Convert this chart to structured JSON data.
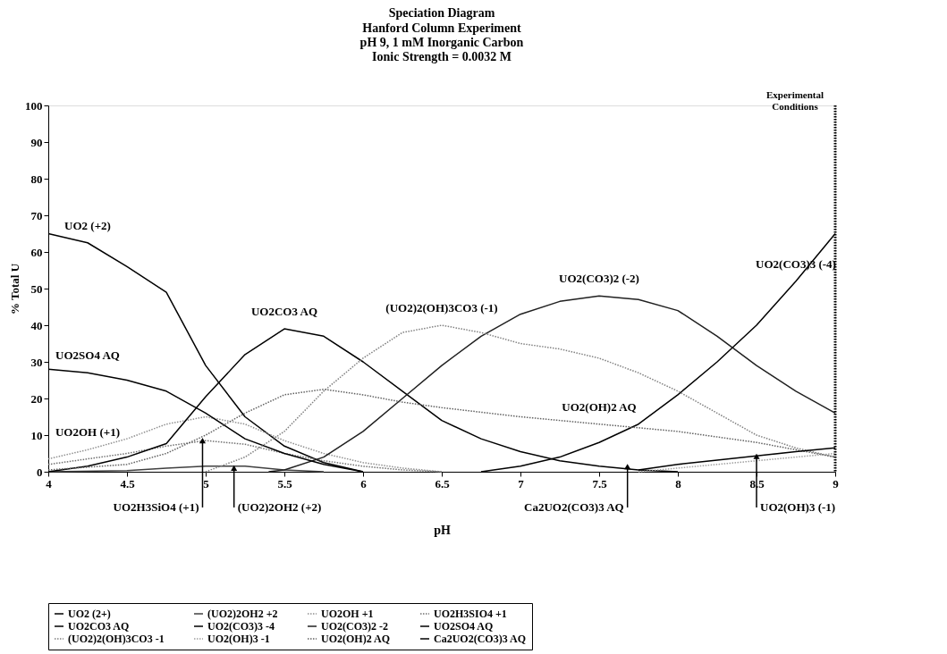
{
  "chart_data": {
    "type": "line",
    "title": "Speciation Diagram",
    "subtitle": "Hanford Column Experiment\npH 9, 1 mM Inorganic Carbon\nIonic Strength = 0.0032 M",
    "xlabel": "pH",
    "ylabel": "% Total U",
    "xlim": [
      4,
      9
    ],
    "xticks": [
      4,
      4.5,
      5,
      5.5,
      6,
      6.5,
      7,
      7.5,
      8,
      8.5,
      9
    ],
    "ylim": [
      0,
      100
    ],
    "yticks": [
      0,
      10,
      20,
      30,
      40,
      50,
      60,
      70,
      80,
      90,
      100
    ],
    "grid": false,
    "legend": "bottom",
    "marker": "none",
    "series": [
      {
        "name": "UO2 (2+)",
        "color": "#000000",
        "line_style": "solid",
        "x": [
          4,
          4.25,
          4.5,
          4.75,
          5,
          5.25,
          5.5,
          5.75,
          6
        ],
        "values": [
          65,
          62.5,
          56,
          49,
          29,
          15,
          7,
          2.5,
          0
        ]
      },
      {
        "name": "(UO2)2OH2 +2",
        "color": "#404040",
        "line_style": "solid",
        "x": [
          4,
          4.5,
          4.75,
          5,
          5.25,
          5.5,
          5.75
        ],
        "values": [
          0,
          0.3,
          1,
          1.5,
          1.5,
          0.5,
          0
        ]
      },
      {
        "name": "UO2OH +1",
        "color": "#909090",
        "line_style": "dotted",
        "x": [
          4,
          4.25,
          4.5,
          4.75,
          5,
          5.25,
          5.5,
          5.75,
          6,
          6.25,
          6.5
        ],
        "values": [
          3.5,
          6,
          9,
          13,
          15,
          13,
          8.5,
          5,
          2.5,
          1,
          0
        ]
      },
      {
        "name": "UO2H3SIO4 +1",
        "color": "#707070",
        "line_style": "dotted",
        "x": [
          4,
          4.25,
          4.5,
          4.75,
          5,
          5.25,
          5.5,
          5.75,
          6,
          6.25,
          6.5
        ],
        "values": [
          2,
          3.5,
          5,
          7,
          8.5,
          7.5,
          5,
          3,
          1.5,
          0.5,
          0
        ]
      },
      {
        "name": "UO2CO3 AQ",
        "color": "#000000",
        "line_style": "solid",
        "x": [
          4,
          4.25,
          4.5,
          4.75,
          5,
          5.25,
          5.5,
          5.75,
          6,
          6.25,
          6.5,
          6.75,
          7,
          7.25,
          7.5,
          7.75,
          8
        ],
        "values": [
          0,
          1.5,
          4,
          7.7,
          20.5,
          32,
          39,
          37,
          30,
          22,
          14,
          9,
          5.5,
          3,
          1.5,
          0.5,
          0
        ]
      },
      {
        "name": "UO2(CO3)3 -4",
        "color": "#000000",
        "line_style": "solid",
        "x": [
          6.75,
          7,
          7.25,
          7.5,
          7.75,
          8,
          8.25,
          8.5,
          8.75,
          9
        ],
        "values": [
          0,
          1.5,
          4,
          8,
          13,
          21,
          30,
          40,
          52,
          65
        ]
      },
      {
        "name": "UO2(CO3)2 -2",
        "color": "#202020",
        "line_style": "solid",
        "x": [
          5.4,
          5.5,
          5.75,
          6,
          6.25,
          6.5,
          6.75,
          7,
          7.25,
          7.5,
          7.75,
          8,
          8.25,
          8.5,
          8.75,
          9
        ],
        "values": [
          0,
          0.5,
          4,
          11,
          20,
          29,
          37,
          43,
          46.5,
          48,
          47,
          44,
          37,
          29,
          22,
          16
        ]
      },
      {
        "name": "UO2SO4 AQ",
        "color": "#000000",
        "line_style": "solid",
        "x": [
          4,
          4.25,
          4.5,
          4.75,
          5,
          5.25,
          5.5,
          5.75,
          6
        ],
        "values": [
          28,
          27,
          25,
          22,
          16,
          9,
          5,
          2,
          0
        ]
      },
      {
        "name": "(UO2)2(OH)3CO3 -1",
        "color": "#808080",
        "line_style": "dotted",
        "x": [
          5,
          5.25,
          5.5,
          5.75,
          6,
          6.25,
          6.5,
          6.75,
          7,
          7.25,
          7.5,
          7.75,
          8,
          8.25,
          8.5,
          8.75,
          9
        ],
        "values": [
          0,
          4,
          11,
          22,
          31,
          38,
          40,
          38,
          35,
          33.5,
          31,
          27,
          22,
          16,
          10,
          6.5,
          4
        ]
      },
      {
        "name": "UO2(OH)3 -1",
        "color": "#a0a0a0",
        "line_style": "dotted",
        "x": [
          7.75,
          8,
          8.25,
          8.5,
          8.75,
          9
        ],
        "values": [
          0,
          1,
          2,
          3,
          4,
          5
        ]
      },
      {
        "name": "UO2(OH)2 AQ",
        "color": "#606060",
        "line_style": "dotted",
        "x": [
          4,
          4.5,
          4.75,
          5,
          5.25,
          5.5,
          5.75,
          6,
          6.25,
          6.5,
          7,
          7.5,
          8,
          8.5,
          9
        ],
        "values": [
          0.5,
          2,
          5,
          10,
          16,
          21,
          22.5,
          21,
          19,
          17.5,
          15,
          13,
          11,
          8,
          4
        ]
      },
      {
        "name": "Ca2UO2(CO3)3 AQ",
        "color": "#000000",
        "line_style": "solid",
        "x": [
          7.75,
          8,
          8.25,
          8.5,
          8.75,
          9
        ],
        "values": [
          0.5,
          2,
          3.2,
          4.3,
          5.5,
          6.5
        ]
      }
    ],
    "ref_lines": [
      {
        "axis": "x",
        "value": 9,
        "label": "Experimental Conditions",
        "color": "#000000",
        "line_style": "dotted"
      }
    ],
    "annotations": [
      {
        "text": "UO2 (+2)",
        "x": 4.25,
        "y": 62.5
      },
      {
        "text": "UO2SO4 AQ",
        "x": 4.25,
        "y": 27
      },
      {
        "text": "UO2OH (+1)",
        "x": 4.25,
        "y": 6
      },
      {
        "text": "UO2CO3 AQ",
        "x": 5.5,
        "y": 39
      },
      {
        "text": "(UO2)2(OH)3CO3 (-1)",
        "x": 6.5,
        "y": 40
      },
      {
        "text": "UO2(CO3)2 (-2)",
        "x": 7.5,
        "y": 48
      },
      {
        "text": "UO2(CO3)3 (-4)",
        "x": 8.75,
        "y": 52
      },
      {
        "text": "UO2(OH)2 AQ",
        "x": 7.5,
        "y": 13
      },
      {
        "text": "UO2H3SiO4 (+1)",
        "x": 4.98,
        "y": 8.5
      },
      {
        "text": "(UO2)2OH2 (+2)",
        "x": 5.18,
        "y": 1
      },
      {
        "text": "Ca2UO2(CO3)3 AQ",
        "x": 7.68,
        "y": 1.4
      },
      {
        "text": "UO2(OH)3 (-1)",
        "x": 8.5,
        "y": 4.2
      }
    ]
  }
}
